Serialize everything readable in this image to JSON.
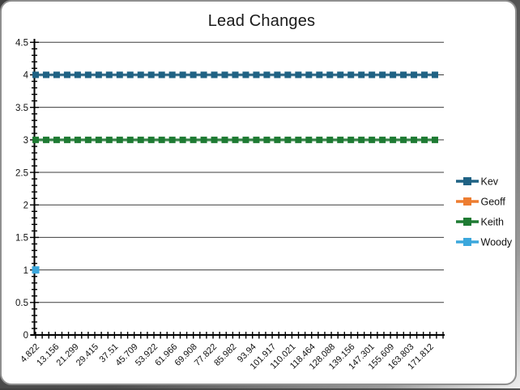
{
  "window": {
    "card_background": "#ffffff",
    "card_border_color": "#8f8f8f"
  },
  "chart_data": {
    "type": "line",
    "title": "Lead Changes",
    "xlabel": "",
    "ylabel": "",
    "categories": [
      "4.822",
      "13.156",
      "21.299",
      "29.415",
      "37.51",
      "45.709",
      "53.922",
      "61.966",
      "69.908",
      "77.822",
      "85.982",
      "93.94",
      "101.917",
      "110.021",
      "118.464",
      "128.088",
      "139.156",
      "147.301",
      "155.609",
      "163.803",
      "171.812"
    ],
    "x_tick_count": 63,
    "x_label_every_n_ticks": 3,
    "y_ticks": [
      "0",
      "0.5",
      "1",
      "1.5",
      "2",
      "2.5",
      "3",
      "3.5",
      "4",
      "4.5"
    ],
    "ylim": [
      0,
      4.5
    ],
    "y_minor_step": 0.1,
    "grid": true,
    "gridline_color": "#3d3d3d",
    "axis_color": "#000000",
    "legend_position": "right",
    "series": [
      {
        "name": "Kev",
        "color": "#1F6284",
        "value": 4,
        "span": "all",
        "marker": "square"
      },
      {
        "name": "Geoff",
        "color": "#ED7D31",
        "value": null,
        "span": "none",
        "marker": "square"
      },
      {
        "name": "Keith",
        "color": "#1E7B33",
        "value": 3,
        "span": "all",
        "marker": "square"
      },
      {
        "name": "Woody",
        "color": "#3BA7DC",
        "value": 1,
        "span": "first",
        "marker": "square"
      }
    ]
  }
}
